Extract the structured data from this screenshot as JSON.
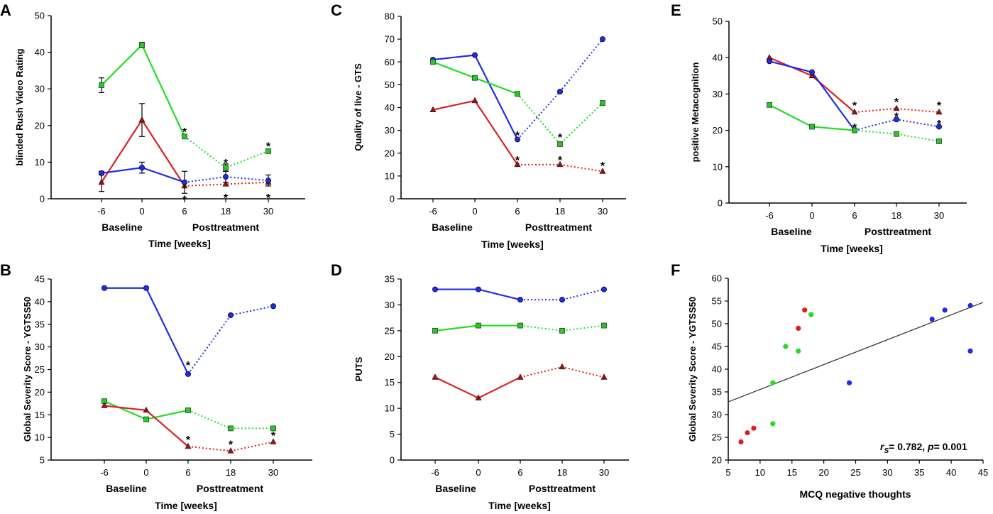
{
  "colors": {
    "blue": "#1f2ee6",
    "green": "#22dd22",
    "red": "#dd1f1f",
    "line_dark": "#333333",
    "marker_red": "#8b1a1a",
    "marker_green": "#22cc22",
    "marker_blue": "#1f2ee6"
  },
  "chart_data": [
    {
      "id": "A",
      "type": "line",
      "letter": "A",
      "ylabel": "blinded Rush Video Rating",
      "xlabel": "Time [weeks]",
      "categories": [
        "-6",
        "0",
        "6",
        "18",
        "30"
      ],
      "group_labels": [
        "Baseline",
        "Posttreatment"
      ],
      "ylim": [
        0,
        50
      ],
      "yticks": [
        0,
        10,
        20,
        30,
        40,
        50
      ],
      "series": [
        {
          "name": "green",
          "color": "green",
          "marker": "square",
          "values": [
            31,
            42,
            17,
            8.5,
            13
          ],
          "errors": [
            2,
            0.7,
            0,
            1,
            0
          ]
        },
        {
          "name": "red",
          "color": "red",
          "marker": "triangle",
          "values": [
            4.5,
            21.5,
            3.5,
            4,
            4.5
          ],
          "errors": [
            2.5,
            4.5,
            0,
            0,
            0
          ]
        },
        {
          "name": "blue",
          "color": "blue",
          "marker": "circle",
          "values": [
            7,
            8.5,
            4.5,
            6,
            5
          ],
          "errors": [
            0.5,
            1.5,
            3,
            1.5,
            1.5
          ]
        }
      ],
      "stars": [
        {
          "cat": 2,
          "value": 19
        },
        {
          "cat": 2,
          "value": 0.5
        },
        {
          "cat": 3,
          "value": 10.5
        },
        {
          "cat": 3,
          "value": 1
        },
        {
          "cat": 4,
          "value": 15
        },
        {
          "cat": 4,
          "value": 1
        }
      ]
    },
    {
      "id": "C",
      "type": "line",
      "letter": "C",
      "ylabel": "Quality of live - GTS",
      "xlabel": "Time [weeks]",
      "categories": [
        "-6",
        "0",
        "6",
        "18",
        "30"
      ],
      "group_labels": [
        "Baseline",
        "Posttreatment"
      ],
      "ylim": [
        0,
        80
      ],
      "yticks": [
        0,
        10,
        20,
        30,
        40,
        50,
        60,
        70,
        80
      ],
      "series": [
        {
          "name": "blue",
          "color": "blue",
          "marker": "circle",
          "values": [
            61,
            63,
            26,
            47,
            70
          ]
        },
        {
          "name": "green",
          "color": "green",
          "marker": "square",
          "values": [
            60,
            53,
            46,
            24,
            42
          ]
        },
        {
          "name": "red",
          "color": "red",
          "marker": "triangle",
          "values": [
            39,
            43,
            15,
            15,
            12
          ]
        }
      ],
      "stars": [
        {
          "cat": 2,
          "value": 29
        },
        {
          "cat": 2,
          "value": 18
        },
        {
          "cat": 3,
          "value": 28
        },
        {
          "cat": 3,
          "value": 18
        },
        {
          "cat": 4,
          "value": 15.5
        }
      ]
    },
    {
      "id": "E",
      "type": "line",
      "letter": "E",
      "ylabel": "positive Metacognition",
      "xlabel": "Time [weeks]",
      "categories": [
        "-6",
        "0",
        "6",
        "18",
        "30"
      ],
      "group_labels": [
        "Baseline",
        "Posttreatment"
      ],
      "ylim": [
        0,
        50
      ],
      "yticks": [
        0,
        10,
        20,
        30,
        40,
        50
      ],
      "series": [
        {
          "name": "red",
          "color": "red",
          "marker": "triangle",
          "values": [
            40,
            35,
            25,
            26,
            25
          ]
        },
        {
          "name": "blue",
          "color": "blue",
          "marker": "circle",
          "values": [
            39,
            36,
            20,
            23,
            21
          ]
        },
        {
          "name": "green",
          "color": "green",
          "marker": "square",
          "values": [
            27,
            21,
            20,
            19,
            17
          ]
        }
      ],
      "stars": [
        {
          "cat": 2,
          "value": 27.5
        },
        {
          "cat": 2,
          "value": 21.5
        },
        {
          "cat": 3,
          "value": 28.5
        },
        {
          "cat": 3,
          "value": 24.5
        },
        {
          "cat": 4,
          "value": 27.5
        },
        {
          "cat": 4,
          "value": 22.5
        }
      ]
    },
    {
      "id": "B",
      "type": "line",
      "letter": "B",
      "ylabel": "Global Severity Score - YGTSS50",
      "xlabel": "Time [weeks]",
      "categories": [
        "-6",
        "0",
        "6",
        "18",
        "30"
      ],
      "group_labels": [
        "Baseline",
        "Posttreatment"
      ],
      "ylim": [
        5,
        45
      ],
      "yticks": [
        5,
        10,
        15,
        20,
        25,
        30,
        35,
        40,
        45
      ],
      "series": [
        {
          "name": "blue",
          "color": "blue",
          "marker": "circle",
          "values": [
            43,
            43,
            24,
            37,
            39
          ]
        },
        {
          "name": "green",
          "color": "green",
          "marker": "square",
          "values": [
            18,
            14,
            16,
            12,
            12
          ]
        },
        {
          "name": "red",
          "color": "red",
          "marker": "triangle",
          "values": [
            17,
            16,
            8,
            7,
            9
          ]
        }
      ],
      "stars": [
        {
          "cat": 2,
          "value": 26.5
        },
        {
          "cat": 2,
          "value": 10
        },
        {
          "cat": 3,
          "value": 9
        },
        {
          "cat": 4,
          "value": 11
        }
      ]
    },
    {
      "id": "D",
      "type": "line",
      "letter": "D",
      "ylabel": "PUTS",
      "xlabel": "Time [weeks]",
      "categories": [
        "-6",
        "0",
        "6",
        "18",
        "30"
      ],
      "group_labels": [
        "Baseline",
        "Posttreatment"
      ],
      "ylim": [
        0,
        35
      ],
      "yticks": [
        0,
        5,
        10,
        15,
        20,
        25,
        30,
        35
      ],
      "series": [
        {
          "name": "blue",
          "color": "blue",
          "marker": "circle",
          "values": [
            33,
            33,
            31,
            31,
            33
          ]
        },
        {
          "name": "green",
          "color": "green",
          "marker": "square",
          "values": [
            25,
            26,
            26,
            25,
            26
          ]
        },
        {
          "name": "red",
          "color": "red",
          "marker": "triangle",
          "values": [
            16,
            12,
            16,
            18,
            16
          ]
        }
      ],
      "stars": []
    },
    {
      "id": "F",
      "type": "scatter",
      "letter": "F",
      "ylabel": "Global Severity Score - YGTSS50",
      "xlabel": "MCQ negative thoughts",
      "xlim": [
        5,
        45
      ],
      "xticks": [
        5,
        10,
        15,
        20,
        25,
        30,
        35,
        40,
        45
      ],
      "ylim": [
        20,
        60
      ],
      "yticks": [
        20,
        25,
        30,
        35,
        40,
        45,
        50,
        55,
        60
      ],
      "points": [
        {
          "x": 7,
          "y": 24,
          "color": "red"
        },
        {
          "x": 8,
          "y": 26,
          "color": "red"
        },
        {
          "x": 9,
          "y": 27,
          "color": "red"
        },
        {
          "x": 16,
          "y": 49,
          "color": "red"
        },
        {
          "x": 17,
          "y": 53,
          "color": "red"
        },
        {
          "x": 12,
          "y": 28,
          "color": "green"
        },
        {
          "x": 12,
          "y": 37,
          "color": "green"
        },
        {
          "x": 14,
          "y": 45,
          "color": "green"
        },
        {
          "x": 16,
          "y": 44,
          "color": "green"
        },
        {
          "x": 18,
          "y": 52,
          "color": "green"
        },
        {
          "x": 24,
          "y": 37,
          "color": "blue"
        },
        {
          "x": 37,
          "y": 51,
          "color": "blue"
        },
        {
          "x": 39,
          "y": 53,
          "color": "blue"
        },
        {
          "x": 43,
          "y": 54,
          "color": "blue"
        },
        {
          "x": 43,
          "y": 44,
          "color": "blue"
        }
      ],
      "regression": {
        "x1": 5,
        "y1": 32.8,
        "x2": 45,
        "y2": 54.7
      },
      "annotation": {
        "r_symbol": "r",
        "r_sub": "S",
        "r_text": "= 0.782, ",
        "p_symbol": "p",
        "p_text": "= 0.001"
      }
    }
  ]
}
